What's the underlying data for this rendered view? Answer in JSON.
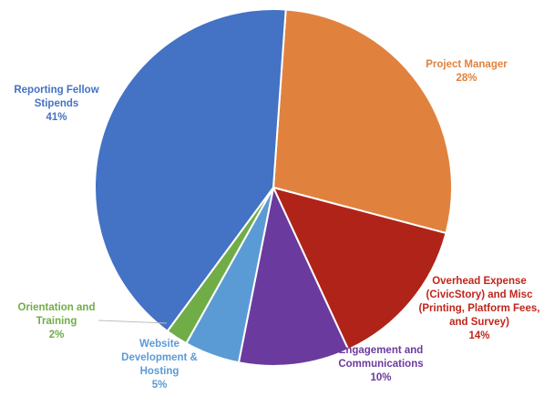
{
  "chart_data": {
    "type": "pie",
    "title": "",
    "slices": [
      {
        "label_lines": [
          "Project Manager"
        ],
        "percent_label": "28%",
        "value": 28,
        "color": "#E0823E",
        "label_color": "#E0823E"
      },
      {
        "label_lines": [
          "Overhead Expense",
          "(CivicStory) and Misc",
          "(Printing, Platform Fees,",
          "and Survey)"
        ],
        "percent_label": "14%",
        "value": 14,
        "color": "#B02318",
        "label_color": "#C0261C"
      },
      {
        "label_lines": [
          "Engagement and",
          "Communications"
        ],
        "percent_label": "10%",
        "value": 10,
        "color": "#6B3A9E",
        "label_color": "#6B3A9E"
      },
      {
        "label_lines": [
          "Website",
          "Development &",
          "Hosting"
        ],
        "percent_label": "5%",
        "value": 5,
        "color": "#5B9BD5",
        "label_color": "#5B9BD5"
      },
      {
        "label_lines": [
          "Orientation and",
          "Training"
        ],
        "percent_label": "2%",
        "value": 2,
        "color": "#70AD47",
        "label_color": "#70AD47"
      },
      {
        "label_lines": [
          "Reporting Fellow",
          "Stipends"
        ],
        "percent_label": "41%",
        "value": 41,
        "color": "#4472C4",
        "label_color": "#4472C4"
      }
    ],
    "start_angle_deg": 4,
    "direction": "clockwise",
    "legend": "none",
    "leader_lines": true
  }
}
